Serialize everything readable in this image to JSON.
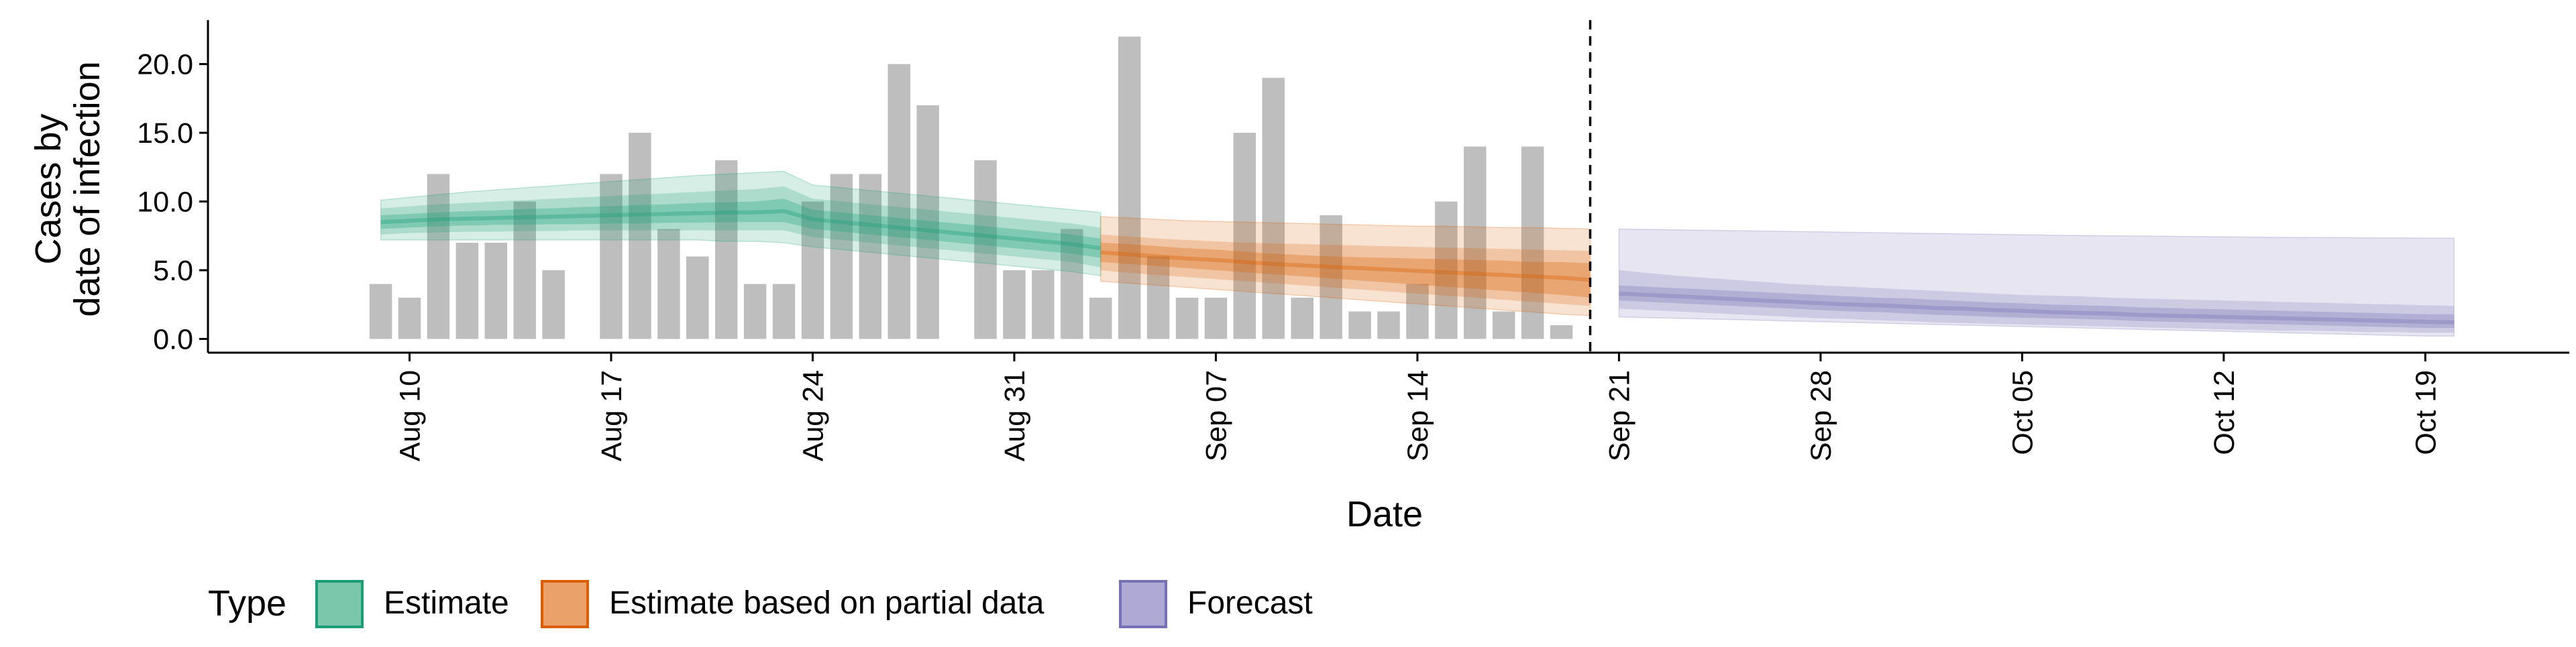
{
  "chart_data": {
    "type": "bar",
    "ylabel": [
      "Cases by",
      "date of infection"
    ],
    "xlabel": "Date",
    "yticks": [
      0,
      5,
      10,
      15,
      20
    ],
    "ytick_labels": [
      "0.0",
      "5.0",
      "10.0",
      "15.0",
      "20.0"
    ],
    "ylim": [
      -1,
      23.2
    ],
    "xlim": [
      "2020-08-03",
      "2020-10-24"
    ],
    "xticks": [
      "2020-08-10",
      "2020-08-17",
      "2020-08-24",
      "2020-08-31",
      "2020-09-07",
      "2020-09-14",
      "2020-09-21",
      "2020-09-28",
      "2020-10-05",
      "2020-10-12",
      "2020-10-19"
    ],
    "xtick_labels": [
      "Aug 10",
      "Aug 17",
      "Aug 24",
      "Aug 31",
      "Sep 07",
      "Sep 14",
      "Sep 21",
      "Sep 28",
      "Oct 05",
      "Oct 12",
      "Oct 19"
    ],
    "vline_date": "2020-09-20",
    "bars": {
      "start_date": "2020-08-09",
      "values": [
        4,
        3,
        12,
        7,
        7,
        10,
        5,
        0,
        12,
        15,
        8,
        6,
        13,
        4,
        4,
        10,
        12,
        12,
        20,
        17,
        0,
        13,
        5,
        5,
        8,
        3,
        22,
        6,
        3,
        3,
        15,
        19,
        3,
        9,
        2,
        2,
        4,
        10,
        14,
        2,
        14,
        1
      ],
      "color": "#bebebe"
    },
    "series": [
      {
        "name": "Estimate",
        "color": "#1b9e77",
        "start_date": "2020-08-09",
        "median": [
          8.5,
          8.6,
          8.7,
          8.75,
          8.8,
          8.85,
          8.9,
          8.95,
          9.0,
          9.05,
          9.1,
          9.15,
          9.2,
          9.2,
          9.3,
          8.7,
          8.5,
          8.3,
          8.1,
          7.9,
          7.7,
          7.5,
          7.3,
          7.1,
          6.9,
          6.6
        ],
        "inner": [
          [
            8.0,
            9.0
          ],
          [
            8.1,
            9.1
          ],
          [
            8.2,
            9.2
          ],
          [
            8.25,
            9.3
          ],
          [
            8.3,
            9.35
          ],
          [
            8.3,
            9.45
          ],
          [
            8.35,
            9.5
          ],
          [
            8.35,
            9.6
          ],
          [
            8.4,
            9.65
          ],
          [
            8.4,
            9.75
          ],
          [
            8.45,
            9.8
          ],
          [
            8.45,
            9.9
          ],
          [
            8.5,
            9.95
          ],
          [
            8.5,
            10.0
          ],
          [
            8.5,
            10.2
          ],
          [
            8.0,
            9.4
          ],
          [
            7.8,
            9.2
          ],
          [
            7.6,
            9.0
          ],
          [
            7.4,
            8.8
          ],
          [
            7.2,
            8.6
          ],
          [
            7.0,
            8.4
          ],
          [
            6.8,
            8.2
          ],
          [
            6.6,
            8.0
          ],
          [
            6.4,
            7.8
          ],
          [
            6.2,
            7.6
          ],
          [
            5.9,
            7.3
          ]
        ],
        "mid": [
          [
            7.6,
            9.5
          ],
          [
            7.7,
            9.65
          ],
          [
            7.75,
            9.8
          ],
          [
            7.8,
            9.9
          ],
          [
            7.8,
            10.0
          ],
          [
            7.85,
            10.1
          ],
          [
            7.85,
            10.2
          ],
          [
            7.9,
            10.3
          ],
          [
            7.9,
            10.4
          ],
          [
            7.9,
            10.5
          ],
          [
            7.9,
            10.6
          ],
          [
            7.9,
            10.7
          ],
          [
            7.9,
            10.8
          ],
          [
            7.9,
            10.9
          ],
          [
            7.9,
            11.1
          ],
          [
            7.4,
            10.2
          ],
          [
            7.2,
            10.0
          ],
          [
            7.0,
            9.8
          ],
          [
            6.8,
            9.6
          ],
          [
            6.6,
            9.4
          ],
          [
            6.4,
            9.2
          ],
          [
            6.2,
            9.0
          ],
          [
            6.0,
            8.8
          ],
          [
            5.8,
            8.6
          ],
          [
            5.6,
            8.4
          ],
          [
            5.2,
            8.1
          ]
        ],
        "outer": [
          [
            7.2,
            10.1
          ],
          [
            7.2,
            10.3
          ],
          [
            7.2,
            10.5
          ],
          [
            7.2,
            10.7
          ],
          [
            7.2,
            10.85
          ],
          [
            7.2,
            11.0
          ],
          [
            7.2,
            11.15
          ],
          [
            7.2,
            11.3
          ],
          [
            7.2,
            11.45
          ],
          [
            7.2,
            11.6
          ],
          [
            7.2,
            11.75
          ],
          [
            7.2,
            11.9
          ],
          [
            7.1,
            12.0
          ],
          [
            7.1,
            12.1
          ],
          [
            7.0,
            12.2
          ],
          [
            6.7,
            11.2
          ],
          [
            6.5,
            11.0
          ],
          [
            6.3,
            10.8
          ],
          [
            6.1,
            10.6
          ],
          [
            5.9,
            10.4
          ],
          [
            5.7,
            10.2
          ],
          [
            5.5,
            10.0
          ],
          [
            5.3,
            9.8
          ],
          [
            5.1,
            9.6
          ],
          [
            4.9,
            9.4
          ],
          [
            4.6,
            9.2
          ]
        ]
      },
      {
        "name": "Estimate based on partial data",
        "color": "#d95f02",
        "start_date": "2020-09-03",
        "median": [
          6.3,
          6.15,
          6.0,
          5.85,
          5.75,
          5.6,
          5.45,
          5.35,
          5.25,
          5.15,
          5.05,
          4.95,
          4.85,
          4.75,
          4.65,
          4.55,
          4.45,
          4.3
        ],
        "inner": [
          [
            5.6,
            7.0
          ],
          [
            5.45,
            6.9
          ],
          [
            5.3,
            6.75
          ],
          [
            5.15,
            6.6
          ],
          [
            5.0,
            6.5
          ],
          [
            4.85,
            6.35
          ],
          [
            4.7,
            6.2
          ],
          [
            4.55,
            6.1
          ],
          [
            4.4,
            6.0
          ],
          [
            4.25,
            5.95
          ],
          [
            4.1,
            5.9
          ],
          [
            3.95,
            5.85
          ],
          [
            3.8,
            5.8
          ],
          [
            3.65,
            5.75
          ],
          [
            3.5,
            5.7
          ],
          [
            3.35,
            5.6
          ],
          [
            3.2,
            5.6
          ],
          [
            3.0,
            5.5
          ]
        ],
        "mid": [
          [
            5.0,
            7.6
          ],
          [
            4.8,
            7.45
          ],
          [
            4.65,
            7.3
          ],
          [
            4.5,
            7.2
          ],
          [
            4.35,
            7.1
          ],
          [
            4.2,
            7.0
          ],
          [
            4.05,
            6.95
          ],
          [
            3.9,
            6.9
          ],
          [
            3.75,
            6.85
          ],
          [
            3.6,
            6.8
          ],
          [
            3.45,
            6.75
          ],
          [
            3.3,
            6.7
          ],
          [
            3.15,
            6.65
          ],
          [
            3.0,
            6.6
          ],
          [
            2.85,
            6.55
          ],
          [
            2.7,
            6.5
          ],
          [
            2.55,
            6.45
          ],
          [
            2.4,
            6.4
          ]
        ],
        "outer": [
          [
            4.2,
            8.9
          ],
          [
            4.05,
            8.8
          ],
          [
            3.9,
            8.7
          ],
          [
            3.75,
            8.6
          ],
          [
            3.6,
            8.55
          ],
          [
            3.45,
            8.5
          ],
          [
            3.3,
            8.45
          ],
          [
            3.15,
            8.4
          ],
          [
            3.0,
            8.35
          ],
          [
            2.85,
            8.3
          ],
          [
            2.7,
            8.25
          ],
          [
            2.55,
            8.2
          ],
          [
            2.4,
            8.2
          ],
          [
            2.25,
            8.15
          ],
          [
            2.1,
            8.1
          ],
          [
            1.95,
            8.1
          ],
          [
            1.8,
            8.05
          ],
          [
            1.7,
            8.0
          ]
        ]
      },
      {
        "name": "Forecast",
        "color": "#7570b3",
        "start_date": "2020-09-21",
        "median": [
          3.3,
          3.2,
          3.1,
          3.0,
          2.9,
          2.8,
          2.7,
          2.6,
          2.5,
          2.45,
          2.35,
          2.25,
          2.2,
          2.1,
          2.05,
          1.95,
          1.9,
          1.85,
          1.75,
          1.7,
          1.65,
          1.6,
          1.55,
          1.5,
          1.45,
          1.4,
          1.35,
          1.3,
          1.25,
          1.2
        ],
        "inner": [
          [
            2.8,
            3.9
          ],
          [
            2.7,
            3.8
          ],
          [
            2.6,
            3.7
          ],
          [
            2.5,
            3.6
          ],
          [
            2.4,
            3.5
          ],
          [
            2.3,
            3.4
          ],
          [
            2.2,
            3.3
          ],
          [
            2.1,
            3.2
          ],
          [
            2.0,
            3.1
          ],
          [
            1.95,
            3.0
          ],
          [
            1.85,
            2.95
          ],
          [
            1.75,
            2.85
          ],
          [
            1.7,
            2.75
          ],
          [
            1.6,
            2.65
          ],
          [
            1.55,
            2.6
          ],
          [
            1.5,
            2.5
          ],
          [
            1.45,
            2.45
          ],
          [
            1.4,
            2.4
          ],
          [
            1.3,
            2.3
          ],
          [
            1.25,
            2.25
          ],
          [
            1.2,
            2.2
          ],
          [
            1.15,
            2.15
          ],
          [
            1.1,
            2.1
          ],
          [
            1.05,
            2.05
          ],
          [
            1.0,
            2.0
          ],
          [
            0.95,
            1.95
          ],
          [
            0.9,
            1.9
          ],
          [
            0.85,
            1.85
          ],
          [
            0.8,
            1.8
          ],
          [
            0.8,
            1.8
          ]
        ],
        "mid": [
          [
            2.2,
            5.0
          ],
          [
            2.1,
            4.8
          ],
          [
            2.0,
            4.6
          ],
          [
            1.9,
            4.45
          ],
          [
            1.8,
            4.3
          ],
          [
            1.7,
            4.15
          ],
          [
            1.6,
            4.0
          ],
          [
            1.5,
            3.9
          ],
          [
            1.45,
            3.8
          ],
          [
            1.35,
            3.7
          ],
          [
            1.3,
            3.6
          ],
          [
            1.2,
            3.5
          ],
          [
            1.15,
            3.4
          ],
          [
            1.1,
            3.3
          ],
          [
            1.05,
            3.2
          ],
          [
            1.0,
            3.15
          ],
          [
            0.95,
            3.1
          ],
          [
            0.9,
            3.0
          ],
          [
            0.85,
            2.95
          ],
          [
            0.8,
            2.9
          ],
          [
            0.75,
            2.85
          ],
          [
            0.7,
            2.8
          ],
          [
            0.65,
            2.75
          ],
          [
            0.6,
            2.7
          ],
          [
            0.6,
            2.65
          ],
          [
            0.55,
            2.6
          ],
          [
            0.5,
            2.55
          ],
          [
            0.5,
            2.5
          ],
          [
            0.45,
            2.45
          ],
          [
            0.45,
            2.4
          ]
        ],
        "outer": [
          [
            1.6,
            8.0
          ],
          [
            1.55,
            7.97
          ],
          [
            1.5,
            7.94
          ],
          [
            1.45,
            7.91
          ],
          [
            1.4,
            7.88
          ],
          [
            1.35,
            7.85
          ],
          [
            1.3,
            7.82
          ],
          [
            1.25,
            7.79
          ],
          [
            1.2,
            7.76
          ],
          [
            1.15,
            7.73
          ],
          [
            1.1,
            7.7
          ],
          [
            1.05,
            7.67
          ],
          [
            1.0,
            7.64
          ],
          [
            0.95,
            7.61
          ],
          [
            0.9,
            7.58
          ],
          [
            0.85,
            7.55
          ],
          [
            0.8,
            7.53
          ],
          [
            0.75,
            7.51
          ],
          [
            0.7,
            7.49
          ],
          [
            0.65,
            7.47
          ],
          [
            0.6,
            7.45
          ],
          [
            0.55,
            7.43
          ],
          [
            0.5,
            7.41
          ],
          [
            0.45,
            7.39
          ],
          [
            0.4,
            7.38
          ],
          [
            0.35,
            7.37
          ],
          [
            0.3,
            7.36
          ],
          [
            0.25,
            7.35
          ],
          [
            0.2,
            7.34
          ],
          [
            0.2,
            7.33
          ]
        ]
      }
    ],
    "legend": {
      "title": "Type",
      "position": "bottom",
      "entries": [
        {
          "label": "Estimate",
          "fill": "#7ac7ac",
          "stroke": "#1b9e77"
        },
        {
          "label": "Estimate based on partial data",
          "fill": "#eba16a",
          "stroke": "#d95f02"
        },
        {
          "label": "Forecast",
          "fill": "#aeaad5",
          "stroke": "#7570b3"
        }
      ]
    }
  }
}
